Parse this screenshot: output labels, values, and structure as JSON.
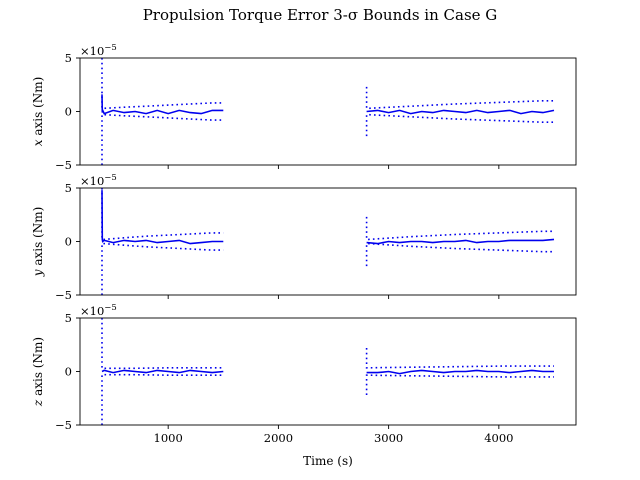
{
  "chart_data": {
    "type": "line",
    "title": "Propulsion Torque Error 3-σ Bounds in Case G",
    "xlabel": "Time (s)",
    "xlim": [
      200,
      4700
    ],
    "x_ticks": [
      1000,
      2000,
      3000,
      4000
    ],
    "x_tick_labels": [
      "1000",
      "2000",
      "3000",
      "4000"
    ],
    "colors": {
      "series": "#0000ee",
      "axes": "#000000"
    },
    "panels": [
      {
        "ylabel": "x axis (Nm)",
        "ylabel_var": "x",
        "ylabel_rest": " axis (Nm)",
        "exponent_label": "×10",
        "exponent_power": "−5",
        "ylim": [
          -5,
          5
        ],
        "y_ticks": [
          -5,
          0,
          5
        ],
        "y_tick_labels": [
          "−5",
          "0",
          "5"
        ],
        "series": [
          {
            "style": "solid",
            "segments": [
              {
                "x": [
                  400,
                  402,
                  406,
                  420,
                  500,
                  600,
                  700,
                  800,
                  900,
                  1000,
                  1100,
                  1200,
                  1300,
                  1400,
                  1500
                ],
                "y": [
                  1.6,
                  -0.1,
                  0.1,
                  -0.2,
                  0.1,
                  -0.1,
                  0.0,
                  -0.2,
                  0.1,
                  -0.2,
                  0.1,
                  -0.1,
                  -0.2,
                  0.1,
                  0.1
                ]
              },
              {
                "x": [
                  2800,
                  2900,
                  3000,
                  3100,
                  3200,
                  3300,
                  3400,
                  3500,
                  3600,
                  3700,
                  3800,
                  3900,
                  4000,
                  4100,
                  4200,
                  4300,
                  4400,
                  4500
                ],
                "y": [
                  0.0,
                  0.1,
                  -0.1,
                  0.1,
                  -0.2,
                  0.0,
                  -0.1,
                  0.1,
                  0.0,
                  -0.1,
                  0.1,
                  -0.1,
                  0.0,
                  0.1,
                  -0.2,
                  0.0,
                  -0.1,
                  0.1
                ]
              }
            ]
          },
          {
            "style": "dotted",
            "segments": [
              {
                "x": [
                  400,
                  400,
                  420,
                  600,
                  800,
                  1000,
                  1200,
                  1400,
                  1500
                ],
                "y": [
                  5,
                  0.3,
                  0.3,
                  0.4,
                  0.5,
                  0.6,
                  0.7,
                  0.8,
                  0.8
                ]
              },
              {
                "x": [
                  2800,
                  2800,
                  2820,
                  3200,
                  3600,
                  4000,
                  4400,
                  4500
                ],
                "y": [
                  2.3,
                  0.3,
                  0.3,
                  0.5,
                  0.7,
                  0.85,
                  1.0,
                  1.0
                ]
              }
            ]
          },
          {
            "style": "dotted",
            "segments": [
              {
                "x": [
                  400,
                  400,
                  420,
                  600,
                  800,
                  1000,
                  1200,
                  1400,
                  1500
                ],
                "y": [
                  -5,
                  -0.3,
                  -0.3,
                  -0.4,
                  -0.5,
                  -0.6,
                  -0.7,
                  -0.8,
                  -0.8
                ]
              },
              {
                "x": [
                  2800,
                  2800,
                  2820,
                  3200,
                  3600,
                  4000,
                  4400,
                  4500
                ],
                "y": [
                  -2.3,
                  -0.3,
                  -0.3,
                  -0.5,
                  -0.7,
                  -0.85,
                  -1.0,
                  -1.0
                ]
              }
            ]
          }
        ]
      },
      {
        "ylabel": "y axis (Nm)",
        "ylabel_var": "y",
        "ylabel_rest": " axis (Nm)",
        "exponent_label": "×10",
        "exponent_power": "−5",
        "ylim": [
          -5,
          5
        ],
        "y_ticks": [
          -5,
          0,
          5
        ],
        "y_tick_labels": [
          "−5",
          "0",
          "5"
        ],
        "series": [
          {
            "style": "solid",
            "segments": [
              {
                "x": [
                  400,
                  402,
                  406,
                  420,
                  500,
                  600,
                  700,
                  800,
                  900,
                  1000,
                  1100,
                  1200,
                  1300,
                  1400,
                  1500
                ],
                "y": [
                  4.8,
                  0.2,
                  0.0,
                  0.1,
                  -0.1,
                  0.1,
                  0.0,
                  0.1,
                  -0.1,
                  0.0,
                  0.1,
                  -0.2,
                  -0.1,
                  0.0,
                  0.0
                ]
              },
              {
                "x": [
                  2800,
                  2900,
                  3000,
                  3100,
                  3200,
                  3300,
                  3400,
                  3500,
                  3600,
                  3700,
                  3800,
                  3900,
                  4000,
                  4100,
                  4200,
                  4300,
                  4400,
                  4500
                ],
                "y": [
                  -0.1,
                  -0.2,
                  0.0,
                  -0.1,
                  0.0,
                  0.0,
                  -0.1,
                  0.0,
                  0.0,
                  0.1,
                  -0.1,
                  0.0,
                  0.0,
                  0.1,
                  0.1,
                  0.1,
                  0.1,
                  0.2
                ]
              }
            ]
          },
          {
            "style": "dotted",
            "segments": [
              {
                "x": [
                  400,
                  400,
                  420,
                  600,
                  800,
                  1000,
                  1200,
                  1400,
                  1500
                ],
                "y": [
                  5,
                  0.2,
                  0.2,
                  0.35,
                  0.5,
                  0.6,
                  0.7,
                  0.8,
                  0.8
                ]
              },
              {
                "x": [
                  2800,
                  2800,
                  2820,
                  3200,
                  3600,
                  4000,
                  4400,
                  4500
                ],
                "y": [
                  2.3,
                  0.2,
                  0.2,
                  0.45,
                  0.65,
                  0.8,
                  0.95,
                  0.95
                ]
              }
            ]
          },
          {
            "style": "dotted",
            "segments": [
              {
                "x": [
                  400,
                  400,
                  420,
                  600,
                  800,
                  1000,
                  1200,
                  1400,
                  1500
                ],
                "y": [
                  -5,
                  -0.2,
                  -0.2,
                  -0.35,
                  -0.5,
                  -0.6,
                  -0.7,
                  -0.8,
                  -0.8
                ]
              },
              {
                "x": [
                  2800,
                  2800,
                  2820,
                  3200,
                  3600,
                  4000,
                  4400,
                  4500
                ],
                "y": [
                  -2.3,
                  -0.2,
                  -0.2,
                  -0.45,
                  -0.65,
                  -0.8,
                  -0.95,
                  -0.95
                ]
              }
            ]
          }
        ]
      },
      {
        "ylabel": "z axis (Nm)",
        "ylabel_var": "z",
        "ylabel_rest": " axis (Nm)",
        "exponent_label": "×10",
        "exponent_power": "−5",
        "ylim": [
          -5,
          5
        ],
        "y_ticks": [
          -5,
          0,
          5
        ],
        "y_tick_labels": [
          "−5",
          "0",
          "5"
        ],
        "series": [
          {
            "style": "solid",
            "segments": [
              {
                "x": [
                  400,
                  420,
                  500,
                  600,
                  700,
                  800,
                  900,
                  1000,
                  1100,
                  1200,
                  1300,
                  1400,
                  1500
                ],
                "y": [
                  0.0,
                  0.1,
                  -0.1,
                  0.1,
                  0.0,
                  -0.1,
                  0.1,
                  0.0,
                  -0.1,
                  0.1,
                  0.0,
                  -0.1,
                  0.0
                ]
              },
              {
                "x": [
                  2800,
                  2900,
                  3000,
                  3100,
                  3200,
                  3300,
                  3400,
                  3500,
                  3600,
                  3700,
                  3800,
                  3900,
                  4000,
                  4100,
                  4200,
                  4300,
                  4400,
                  4500
                ],
                "y": [
                  -0.1,
                  -0.1,
                  0.0,
                  -0.2,
                  0.0,
                  0.1,
                  0.0,
                  -0.1,
                  0.0,
                  0.0,
                  0.1,
                  0.0,
                  0.0,
                  -0.1,
                  0.0,
                  0.1,
                  0.0,
                  0.0
                ]
              }
            ]
          },
          {
            "style": "dotted",
            "segments": [
              {
                "x": [
                  400,
                  400,
                  420,
                  700,
                  1000,
                  1300,
                  1500
                ],
                "y": [
                  5,
                  0.3,
                  0.3,
                  0.3,
                  0.35,
                  0.35,
                  0.35
                ]
              },
              {
                "x": [
                  2800,
                  2800,
                  2820,
                  3200,
                  3600,
                  4000,
                  4400,
                  4500
                ],
                "y": [
                  2.2,
                  0.35,
                  0.35,
                  0.4,
                  0.45,
                  0.5,
                  0.5,
                  0.5
                ]
              }
            ]
          },
          {
            "style": "dotted",
            "segments": [
              {
                "x": [
                  400,
                  400,
                  420,
                  700,
                  1000,
                  1300,
                  1500
                ],
                "y": [
                  -5,
                  -0.3,
                  -0.3,
                  -0.3,
                  -0.35,
                  -0.35,
                  -0.35
                ]
              },
              {
                "x": [
                  2800,
                  2800,
                  2820,
                  3200,
                  3600,
                  4000,
                  4400,
                  4500
                ],
                "y": [
                  -2.2,
                  -0.35,
                  -0.35,
                  -0.4,
                  -0.45,
                  -0.5,
                  -0.5,
                  -0.5
                ]
              }
            ]
          }
        ]
      }
    ]
  }
}
